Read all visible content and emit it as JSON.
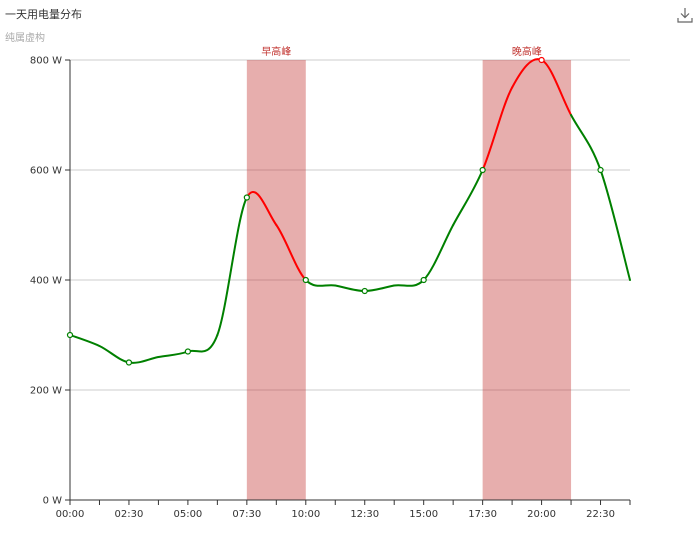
{
  "title": "一天用电量分布",
  "subtitle": "纯属虚构",
  "toolbox": {
    "icon": "download-icon"
  },
  "colors": {
    "normal": "#008000",
    "peak": "#ff0000",
    "band": "rgba(194,53,49,0.4)",
    "bandLabel": "#c23531"
  },
  "chart_data": {
    "type": "line",
    "smooth": true,
    "categories": [
      "00:00",
      "01:15",
      "02:30",
      "03:45",
      "05:00",
      "06:15",
      "07:30",
      "08:45",
      "10:00",
      "11:15",
      "12:30",
      "13:45",
      "15:00",
      "16:15",
      "17:30",
      "18:45",
      "20:00",
      "21:15",
      "22:30",
      "23:45"
    ],
    "xTickLabels": [
      "00:00",
      "02:30",
      "05:00",
      "07:30",
      "10:00",
      "12:30",
      "15:00",
      "17:30",
      "20:00",
      "22:30"
    ],
    "values": [
      300,
      280,
      250,
      260,
      270,
      300,
      550,
      500,
      400,
      390,
      380,
      390,
      400,
      500,
      600,
      750,
      800,
      700,
      600,
      400
    ],
    "yAxis": {
      "min": 0,
      "max": 800,
      "interval": 200,
      "unit": "W",
      "ticks": [
        "0 W",
        "200 W",
        "400 W",
        "600 W",
        "800 W"
      ]
    },
    "grid": true,
    "visualMap": [
      {
        "range": [
          "07:30",
          "10:00"
        ],
        "color": "#ff0000"
      },
      {
        "range": [
          "17:30",
          "21:15"
        ],
        "color": "#ff0000"
      }
    ],
    "markArea": [
      {
        "label": "早高峰",
        "from": "07:30",
        "to": "10:00"
      },
      {
        "label": "晚高峰",
        "from": "17:30",
        "to": "21:15"
      }
    ]
  }
}
